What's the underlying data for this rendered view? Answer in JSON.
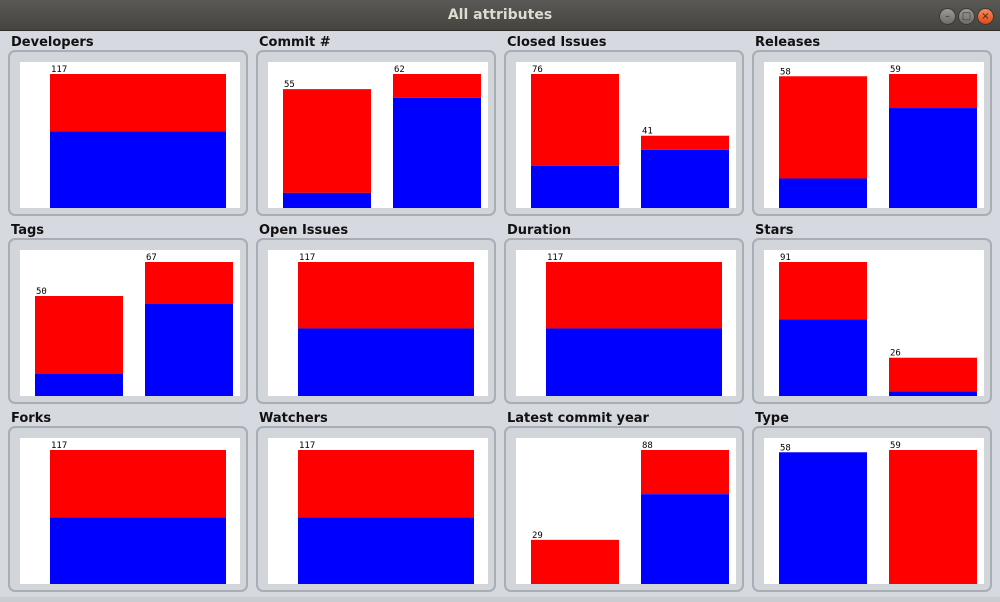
{
  "window": {
    "title": "All attributes"
  },
  "colors": {
    "blue": "#0000ff",
    "red": "#ff0000"
  },
  "panels": [
    {
      "title": "Developers",
      "max": 117,
      "bars": [
        {
          "label": "117",
          "total": 117,
          "blue": 67
        }
      ]
    },
    {
      "title": "Commit #",
      "max": 62,
      "bars": [
        {
          "label": "55",
          "total": 55,
          "blue": 7
        },
        {
          "label": "62",
          "total": 62,
          "blue": 51
        }
      ]
    },
    {
      "title": "Closed Issues",
      "max": 76,
      "bars": [
        {
          "label": "76",
          "total": 76,
          "blue": 24
        },
        {
          "label": "41",
          "total": 41,
          "blue": 33
        }
      ]
    },
    {
      "title": "Releases",
      "max": 59,
      "bars": [
        {
          "label": "58",
          "total": 58,
          "blue": 13
        },
        {
          "label": "59",
          "total": 59,
          "blue": 44
        }
      ]
    },
    {
      "title": "Tags",
      "max": 67,
      "bars": [
        {
          "label": "50",
          "total": 50,
          "blue": 11
        },
        {
          "label": "67",
          "total": 67,
          "blue": 46
        }
      ]
    },
    {
      "title": "Open Issues",
      "max": 117,
      "bars": [
        {
          "label": "117",
          "total": 117,
          "blue": 59
        }
      ]
    },
    {
      "title": "Duration",
      "max": 117,
      "bars": [
        {
          "label": "117",
          "total": 117,
          "blue": 59
        }
      ]
    },
    {
      "title": "Stars",
      "max": 91,
      "bars": [
        {
          "label": "91",
          "total": 91,
          "blue": 52
        },
        {
          "label": "26",
          "total": 26,
          "blue": 3
        }
      ]
    },
    {
      "title": "Forks",
      "max": 117,
      "bars": [
        {
          "label": "117",
          "total": 117,
          "blue": 58
        }
      ]
    },
    {
      "title": "Watchers",
      "max": 117,
      "bars": [
        {
          "label": "117",
          "total": 117,
          "blue": 58
        }
      ]
    },
    {
      "title": "Latest commit year",
      "max": 88,
      "bars": [
        {
          "label": "29",
          "total": 29,
          "blue": 0
        },
        {
          "label": "88",
          "total": 88,
          "blue": 59
        }
      ]
    },
    {
      "title": "Type",
      "max": 59,
      "bars": [
        {
          "label": "58",
          "total": 58,
          "blue": 58
        },
        {
          "label": "59",
          "total": 59,
          "blue": 0
        }
      ]
    }
  ]
}
